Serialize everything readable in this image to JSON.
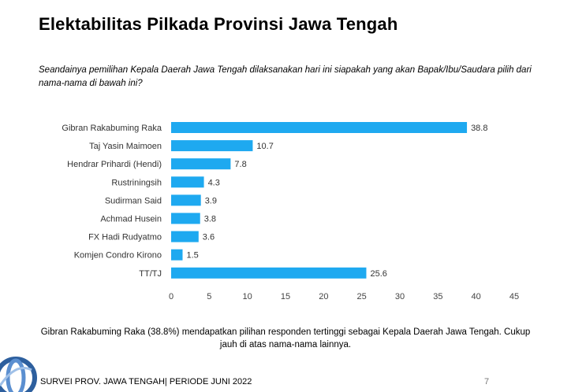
{
  "title": "Elektabilitas Pilkada Provinsi Jawa Tengah",
  "question": "Seandainya pemilihan Kepala Daerah Jawa Tengah dilaksanakan hari ini siapakah yang akan Bapak/Ibu/Saudara pilih dari nama-nama di bawah ini?",
  "summary": "Gibran Rakabuming Raka (38.8%) mendapatkan pilihan responden tertinggi sebagai Kepala Daerah Jawa Tengah. Cukup jauh di atas nama-nama lainnya.",
  "footer": "SURVEI PROV. JAWA TENGAH| PERIODE JUNI 2022",
  "page_number": "7",
  "chart_data": {
    "type": "bar",
    "orientation": "horizontal",
    "categories": [
      "Gibran Rakabuming Raka",
      "Taj Yasin Maimoen",
      "Hendrar Prihardi (Hendi)",
      "Rustriningsih",
      "Sudirman Said",
      "Achmad Husein",
      "FX Hadi Rudyatmo",
      "Komjen Condro Kirono",
      "TT/TJ"
    ],
    "values": [
      38.8,
      10.7,
      7.8,
      4.3,
      3.9,
      3.8,
      3.6,
      1.5,
      25.6
    ],
    "xlim": [
      0,
      45
    ],
    "xticks": [
      0,
      5,
      10,
      15,
      20,
      25,
      30,
      35,
      40,
      45
    ],
    "grid": false,
    "bar_color": "#1ea9f0",
    "data_labels": true
  }
}
